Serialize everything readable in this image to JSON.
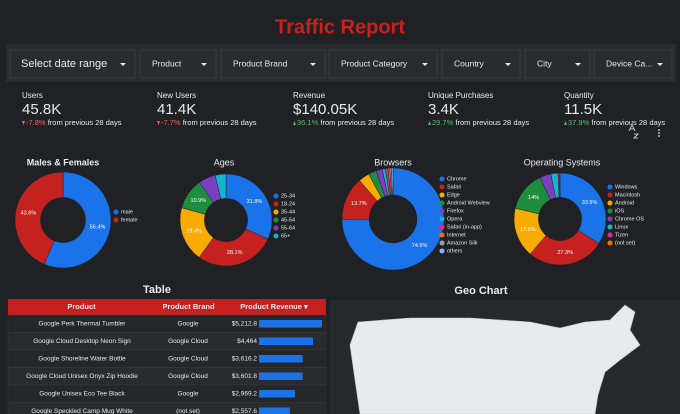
{
  "header": {
    "title": "Traffic Report"
  },
  "filters": [
    "Select date range",
    "Product",
    "Product Brand",
    "Product Category",
    "Country",
    "City",
    "Device Ca..."
  ],
  "scorecards": [
    {
      "label": "Users",
      "value": "45.8K",
      "delta": "-7.8%",
      "note": "from previous 28 days"
    },
    {
      "label": "New Users",
      "value": "41.4K",
      "delta": "-7.7%",
      "note": "from previous 28 days"
    },
    {
      "label": "Revenue",
      "value": "$140.05K",
      "delta": "36.1%",
      "note": "from previous 28 days"
    },
    {
      "label": "Unique Purchases",
      "value": "3.4K",
      "delta": "29.7%",
      "note": "from previous 28 days"
    },
    {
      "label": "Quantity",
      "value": "11.5K",
      "delta": "37.9%",
      "note": "from previous 28 days"
    }
  ],
  "chart_data": [
    {
      "type": "pie",
      "title": "Males & Females",
      "categories": [
        "male",
        "female"
      ],
      "values": [
        56.4,
        43.6
      ],
      "value_labels": [
        "56.4%",
        "43.6%"
      ],
      "colors": [
        "#1a73e8",
        "#c5221f"
      ]
    },
    {
      "type": "pie",
      "title": "Ages",
      "categories": [
        "25-34",
        "18-24",
        "35-44",
        "45-54",
        "55-64",
        "65+"
      ],
      "values": [
        31.8,
        28.1,
        19.4,
        10.9,
        6,
        3.8
      ],
      "value_labels": [
        "31.8%",
        "28.1%",
        "19.4%",
        "10.9%",
        null,
        null
      ],
      "colors": [
        "#1a73e8",
        "#c5221f",
        "#f9ab00",
        "#1e8e3e",
        "#7b3fc4",
        "#12b5cb"
      ]
    },
    {
      "type": "pie",
      "title": "Browsers",
      "categories": [
        "Chrome",
        "Safari",
        "Edge",
        "Android Webview",
        "Firefox",
        "Opera",
        "Safari (in-app)",
        "Internet",
        "Amazon Silk",
        "others"
      ],
      "values": [
        74.9,
        13.7,
        3.5,
        2.5,
        2,
        1,
        0.8,
        0.6,
        0.5,
        0.5
      ],
      "value_labels": [
        "74.9%",
        "13.7%",
        null,
        null,
        null,
        null,
        null,
        null,
        null,
        null
      ],
      "colors": [
        "#1a73e8",
        "#c5221f",
        "#f9ab00",
        "#1e8e3e",
        "#7b3fc4",
        "#12b5cb",
        "#e52592",
        "#e8710a",
        "#9aa0a6",
        "#8ab4f8"
      ]
    },
    {
      "type": "pie",
      "title": "Operating Systems",
      "categories": [
        "Windows",
        "Macintosh",
        "Android",
        "iOS",
        "Chrome OS",
        "Linux",
        "Tizen",
        "(not set)"
      ],
      "values": [
        33.9,
        27.3,
        17.6,
        14,
        4,
        2.5,
        0.4,
        0.3
      ],
      "value_labels": [
        "33.9%",
        "27.3%",
        "17.6%",
        "14%",
        null,
        null,
        null,
        null
      ],
      "colors": [
        "#1a73e8",
        "#c5221f",
        "#f9ab00",
        "#1e8e3e",
        "#7b3fc4",
        "#12b5cb",
        "#e52592",
        "#e8710a"
      ]
    }
  ],
  "table": {
    "title": "Table",
    "headers": [
      "Product",
      "Product Brand",
      "Product Revenue ▾"
    ],
    "rows": [
      [
        "Google Perk Thermal Tumbler",
        "Google",
        {
          "value": 5212.8,
          "label": "$5,212.8"
        }
      ],
      [
        "Google Cloud Desktop Neon Sign",
        "Google Cloud",
        {
          "value": 4464,
          "label": "$4,464"
        }
      ],
      [
        "Google Shoreline Water Bottle",
        "Google Cloud",
        {
          "value": 3616.2,
          "label": "$3,616.2"
        }
      ],
      [
        "Google Cloud Unisex Onyx Zip Hoodie",
        "Google Cloud",
        {
          "value": 3601.8,
          "label": "$3,601.8"
        }
      ],
      [
        "Google Unisex Eco Tee Black",
        "Google",
        {
          "value": 2969.2,
          "label": "$2,969.2"
        }
      ],
      [
        "Google Speckled Camp Mug White",
        "(not set)",
        {
          "value": 2557.6,
          "label": "$2,557.6"
        }
      ]
    ]
  },
  "geo": {
    "title": "Geo Chart"
  }
}
